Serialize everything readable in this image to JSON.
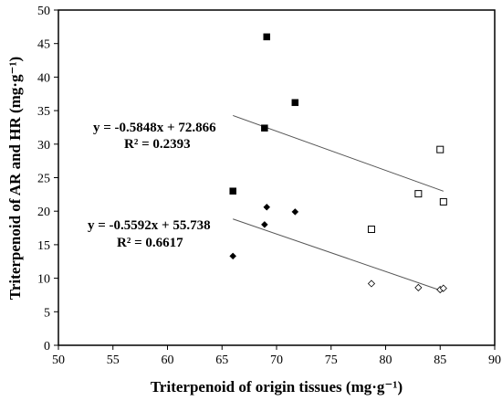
{
  "chart_data": {
    "type": "scatter",
    "xlabel": "Triterpenoid  of origin tissues (mg·g⁻¹)",
    "ylabel": "Triterpenoid  of AR and HR (mg·g⁻¹)",
    "xlim": [
      50,
      90
    ],
    "ylim": [
      0,
      50
    ],
    "x_ticks": [
      "50",
      "55",
      "60",
      "65",
      "70",
      "75",
      "80",
      "85",
      "90"
    ],
    "y_ticks": [
      "0",
      "5",
      "10",
      "15",
      "20",
      "25",
      "30",
      "35",
      "40",
      "45",
      "50"
    ],
    "x_tick_values": [
      50,
      55,
      60,
      65,
      70,
      75,
      80,
      85,
      90
    ],
    "y_tick_values": [
      0,
      5,
      10,
      15,
      20,
      25,
      30,
      35,
      40,
      45,
      50
    ],
    "grid": false,
    "legend": "none",
    "series": [
      {
        "marker": "filled-square",
        "color": "#000000",
        "points": [
          [
            66.0,
            23.0
          ],
          [
            68.9,
            32.4
          ],
          [
            69.1,
            46.0
          ],
          [
            71.7,
            36.2
          ]
        ]
      },
      {
        "marker": "hollow-square",
        "color": "#000000",
        "points": [
          [
            78.7,
            17.3
          ],
          [
            83.0,
            22.6
          ],
          [
            85.0,
            29.2
          ],
          [
            85.3,
            21.4
          ]
        ]
      },
      {
        "marker": "filled-diamond",
        "color": "#000000",
        "points": [
          [
            66.0,
            13.3
          ],
          [
            68.9,
            18.0
          ],
          [
            69.1,
            20.6
          ],
          [
            71.7,
            19.9
          ]
        ]
      },
      {
        "marker": "hollow-diamond",
        "color": "#000000",
        "points": [
          [
            78.7,
            9.2
          ],
          [
            83.0,
            8.6
          ],
          [
            85.0,
            8.3
          ],
          [
            85.3,
            8.5
          ]
        ]
      }
    ],
    "trendlines": [
      {
        "slope": -0.5848,
        "intercept": 72.866,
        "x_range": [
          66.0,
          85.3
        ],
        "equation": "y = -0.5848x + 72.866",
        "r2": "R² = 0.2393"
      },
      {
        "slope": -0.5592,
        "intercept": 55.738,
        "x_range": [
          66.0,
          85.3
        ],
        "equation": "y = -0.5592x + 55.738",
        "r2": "R² = 0.6617"
      }
    ]
  }
}
